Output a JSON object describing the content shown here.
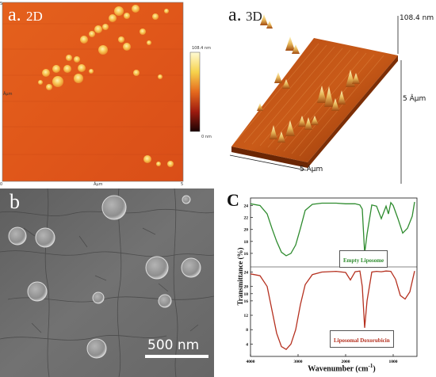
{
  "panel_a2d": {
    "label_a": "a.",
    "label_2d": "2D",
    "scale_max": "108.4 nm",
    "scale_min": "0 nm",
    "axis_left": "Âµm",
    "axis_bottom": "Âµm",
    "tick_5_left": "5",
    "tick_5_bottom": "5",
    "tick_0": "0"
  },
  "panel_a3d": {
    "label": "a.",
    "label_3d": "3D",
    "z_value": "108.4 nm",
    "side_dim": "5 Âµm",
    "bottom_dim": "5 Âµm"
  },
  "panel_b": {
    "label": "b",
    "scale_bar": "500 nm"
  },
  "panel_c": {
    "label": "C",
    "ylabel": "Transmittance (%)",
    "xlabel": "Wavenumber (cm",
    "xlabel_sup": "-1",
    "xlabel_close": ")",
    "x_ticks": [
      "4000",
      "3000",
      "2000",
      "1000"
    ],
    "top_y_ticks": [
      "24",
      "22",
      "20",
      "18",
      "16"
    ],
    "bottom_y_ticks": [
      "24",
      "20",
      "18",
      "16",
      "12",
      "8",
      "4"
    ],
    "legend_top": "Empty Liposome",
    "legend_bottom": "Liposomal Doxorubicin",
    "color_top": "#2e8b2e",
    "color_bottom": "#b5301f"
  },
  "chart_data": {
    "type": "line",
    "xlabel": "Wavenumber (cm-1)",
    "ylabel": "Transmittance (%)",
    "xlim": [
      4000,
      500
    ],
    "series": [
      {
        "name": "Empty Liposome",
        "x": [
          4000,
          3800,
          3650,
          3550,
          3450,
          3350,
          3250,
          3150,
          3050,
          2950,
          2850,
          2700,
          2500,
          2200,
          2000,
          1800,
          1700,
          1650,
          1600,
          1550,
          1450,
          1350,
          1250,
          1150,
          1100,
          1050,
          1000,
          900,
          800,
          700,
          600,
          550
        ],
        "y": [
          24.3,
          24.0,
          22.6,
          20.2,
          18.0,
          16.2,
          15.6,
          16.0,
          17.4,
          20.2,
          23.2,
          24.2,
          24.4,
          24.4,
          24.3,
          24.3,
          24.1,
          23.4,
          16.0,
          19.2,
          24.1,
          23.9,
          21.8,
          23.9,
          22.6,
          24.5,
          24.0,
          21.8,
          19.4,
          20.2,
          22.2,
          24.6
        ]
      },
      {
        "name": "Liposomal Doxorubicin",
        "x": [
          4000,
          3800,
          3650,
          3550,
          3450,
          3350,
          3250,
          3150,
          3050,
          2950,
          2850,
          2700,
          2500,
          2200,
          2000,
          1900,
          1800,
          1700,
          1650,
          1600,
          1550,
          1450,
          1350,
          1250,
          1150,
          1050,
          950,
          850,
          750,
          650,
          550
        ],
        "y": [
          23.5,
          23.0,
          20.0,
          13.5,
          7.0,
          3.3,
          2.5,
          4.0,
          8.0,
          15.0,
          20.5,
          23.3,
          24.0,
          24.2,
          23.9,
          21.8,
          24.1,
          24.3,
          20.0,
          8.5,
          16.0,
          24.0,
          24.2,
          24.1,
          24.3,
          24.2,
          22.0,
          17.5,
          16.5,
          18.5,
          24.3
        ]
      }
    ]
  }
}
